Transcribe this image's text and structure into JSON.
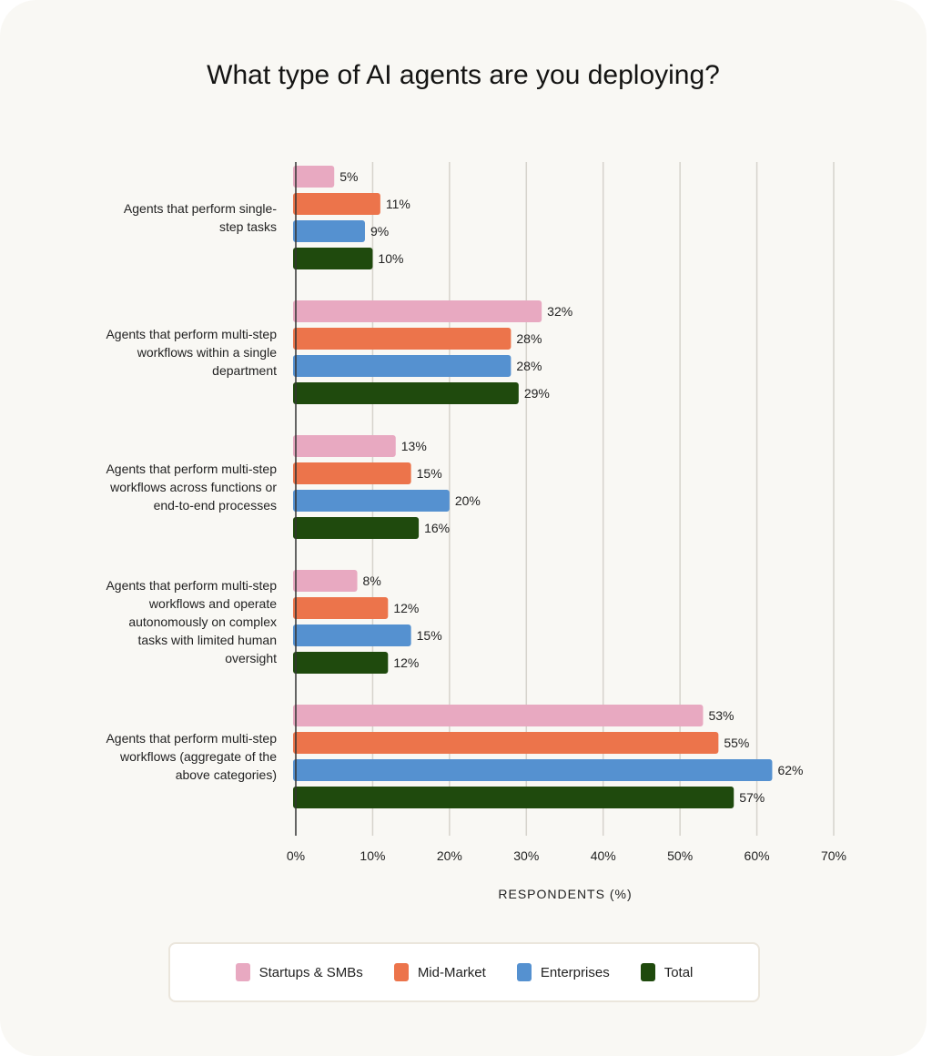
{
  "chart_data": {
    "type": "bar",
    "orientation": "horizontal",
    "title": "What type of AI agents are you deploying?",
    "xlabel": "RESPONDENTS (%)",
    "ylabel": "",
    "xlim": [
      0,
      70
    ],
    "xticks": [
      "0%",
      "10%",
      "20%",
      "30%",
      "40%",
      "50%",
      "60%",
      "70%"
    ],
    "grid": true,
    "legend_placement": "bottom",
    "categories": [
      [
        "Agents that perform single-",
        "step tasks"
      ],
      [
        "Agents that perform multi-step",
        "workflows within a single",
        "department"
      ],
      [
        "Agents that perform multi-step",
        "workflows across functions or",
        "end-to-end processes"
      ],
      [
        "Agents that perform multi-step",
        "workflows and operate",
        "autonomously on complex",
        "tasks with limited human",
        "oversight"
      ],
      [
        "Agents that perform multi-step",
        "workflows (aggregate of the",
        "above categories)"
      ]
    ],
    "series": [
      {
        "name": "Startups & SMBs",
        "color": "#e8a9c1",
        "values": [
          5,
          32,
          13,
          8,
          53
        ]
      },
      {
        "name": "Mid-Market",
        "color": "#ec744b",
        "values": [
          11,
          28,
          15,
          12,
          55
        ]
      },
      {
        "name": "Enterprises",
        "color": "#5591d0",
        "values": [
          9,
          28,
          20,
          15,
          62
        ]
      },
      {
        "name": "Total",
        "color": "#1f4a0d",
        "values": [
          10,
          29,
          16,
          12,
          57
        ]
      }
    ]
  }
}
